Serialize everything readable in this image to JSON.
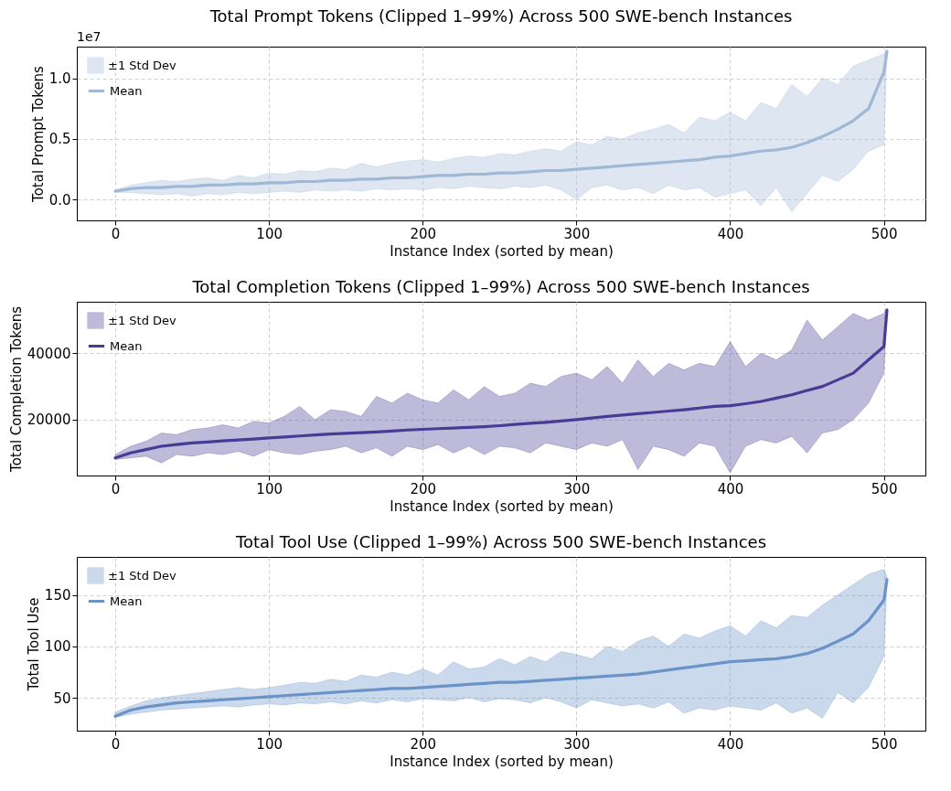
{
  "chart_data": [
    {
      "type": "line",
      "title": "Total Prompt Tokens (Clipped 1–99%) Across 500 SWE-bench Instances",
      "xlabel": "Instance Index (sorted by mean)",
      "ylabel": "Total Prompt Tokens",
      "annotations": [
        "1e7",
        "±1 Std Dev"
      ],
      "x": [
        0,
        10,
        20,
        30,
        40,
        50,
        60,
        70,
        80,
        90,
        100,
        110,
        120,
        130,
        140,
        150,
        160,
        170,
        180,
        190,
        200,
        210,
        220,
        230,
        240,
        250,
        260,
        270,
        280,
        290,
        300,
        310,
        320,
        330,
        340,
        350,
        360,
        370,
        380,
        390,
        400,
        410,
        420,
        430,
        440,
        450,
        460,
        470,
        480,
        490,
        500,
        502
      ],
      "xlim": [
        -25,
        527
      ],
      "xticks": [
        0,
        100,
        200,
        300,
        400,
        500
      ],
      "ylim": [
        -0.17,
        1.26
      ],
      "yticks": [
        {
          "value": 0,
          "label": "0.0"
        },
        {
          "value": 0.5,
          "label": "0.5"
        },
        {
          "value": 1,
          "label": "1.0"
        }
      ],
      "grid": true,
      "legend": "top left",
      "series": [
        {
          "name": "Mean",
          "color": "#9fb8d6",
          "values": [
            0.07,
            0.09,
            0.1,
            0.1,
            0.11,
            0.11,
            0.12,
            0.12,
            0.13,
            0.13,
            0.14,
            0.14,
            0.15,
            0.15,
            0.16,
            0.16,
            0.17,
            0.17,
            0.18,
            0.18,
            0.19,
            0.2,
            0.2,
            0.21,
            0.21,
            0.22,
            0.22,
            0.23,
            0.24,
            0.24,
            0.25,
            0.26,
            0.27,
            0.28,
            0.29,
            0.3,
            0.31,
            0.32,
            0.33,
            0.35,
            0.36,
            0.38,
            0.4,
            0.41,
            0.43,
            0.47,
            0.52,
            0.58,
            0.65,
            0.75,
            1.05,
            1.22
          ],
          "lower": [
            0.06,
            0.06,
            0.05,
            0.04,
            0.05,
            0.03,
            0.05,
            0.04,
            0.06,
            0.05,
            0.06,
            0.07,
            0.06,
            0.08,
            0.07,
            0.08,
            0.07,
            0.09,
            0.08,
            0.09,
            0.08,
            0.1,
            0.09,
            0.11,
            0.1,
            0.09,
            0.11,
            0.1,
            0.12,
            0.08,
            0.0,
            0.1,
            0.12,
            0.08,
            0.1,
            0.05,
            0.12,
            0.08,
            0.1,
            0.02,
            0.05,
            0.08,
            -0.05,
            0.1,
            -0.1,
            0.05,
            0.2,
            0.15,
            0.25,
            0.4,
            0.45,
            1.2
          ],
          "upper": [
            0.08,
            0.12,
            0.14,
            0.16,
            0.15,
            0.17,
            0.18,
            0.16,
            0.2,
            0.18,
            0.22,
            0.21,
            0.24,
            0.23,
            0.26,
            0.25,
            0.3,
            0.27,
            0.3,
            0.32,
            0.33,
            0.31,
            0.34,
            0.36,
            0.35,
            0.38,
            0.37,
            0.4,
            0.42,
            0.4,
            0.48,
            0.45,
            0.52,
            0.5,
            0.55,
            0.58,
            0.62,
            0.55,
            0.68,
            0.65,
            0.72,
            0.65,
            0.8,
            0.75,
            0.95,
            0.85,
            1.0,
            0.95,
            1.1,
            1.15,
            1.2,
            1.24
          ]
        }
      ]
    },
    {
      "type": "line",
      "title": "Total Completion Tokens (Clipped 1–99%) Across 500 SWE-bench Instances",
      "xlabel": "Instance Index (sorted by mean)",
      "ylabel": "Total Completion Tokens",
      "annotations": [
        "±1 Std Dev"
      ],
      "x": [
        0,
        10,
        20,
        30,
        40,
        50,
        60,
        70,
        80,
        90,
        100,
        110,
        120,
        130,
        140,
        150,
        160,
        170,
        180,
        190,
        200,
        210,
        220,
        230,
        240,
        250,
        260,
        270,
        280,
        290,
        300,
        310,
        320,
        330,
        340,
        350,
        360,
        370,
        380,
        390,
        400,
        410,
        420,
        430,
        440,
        450,
        460,
        470,
        480,
        490,
        500,
        502
      ],
      "xlim": [
        -25,
        527
      ],
      "xticks": [
        0,
        100,
        200,
        300,
        400,
        500
      ],
      "ylim": [
        3200,
        55500
      ],
      "yticks": [
        20000,
        40000
      ],
      "grid": true,
      "legend": "top left",
      "series": [
        {
          "name": "Mean",
          "color": "#463c96",
          "values": [
            8500,
            10000,
            11000,
            12000,
            12500,
            13000,
            13300,
            13600,
            13900,
            14200,
            14500,
            14800,
            15100,
            15400,
            15700,
            15900,
            16100,
            16300,
            16600,
            16900,
            17100,
            17300,
            17500,
            17700,
            17900,
            18200,
            18600,
            18900,
            19200,
            19600,
            20000,
            20500,
            21000,
            21400,
            21800,
            22200,
            22600,
            23000,
            23500,
            24000,
            24200,
            24800,
            25500,
            26500,
            27500,
            28800,
            30000,
            32000,
            34000,
            38000,
            42000,
            53000
          ],
          "lower": [
            8000,
            8500,
            9000,
            7000,
            9500,
            9000,
            10000,
            9500,
            10500,
            9000,
            11000,
            10000,
            9500,
            10500,
            11000,
            12000,
            10000,
            11500,
            9000,
            12000,
            11000,
            12500,
            10000,
            12000,
            9500,
            12000,
            11500,
            10000,
            13000,
            12000,
            11000,
            13000,
            12000,
            14000,
            5000,
            12000,
            11000,
            9000,
            13000,
            12000,
            4000,
            12000,
            14000,
            13000,
            15000,
            10000,
            16000,
            17000,
            20000,
            25000,
            34000,
            52500
          ],
          "upper": [
            9500,
            12000,
            13500,
            16000,
            15500,
            17000,
            17500,
            18500,
            17500,
            19500,
            19000,
            21000,
            24000,
            20000,
            23000,
            22500,
            21000,
            27000,
            25000,
            28000,
            26000,
            25000,
            29000,
            26000,
            30000,
            27000,
            28000,
            31000,
            30000,
            33000,
            34000,
            32000,
            36000,
            31000,
            38000,
            33000,
            37000,
            35000,
            37000,
            36000,
            43500,
            36000,
            40000,
            38000,
            41000,
            50000,
            44000,
            48000,
            52000,
            50000,
            52000,
            53500
          ]
        }
      ]
    },
    {
      "type": "line",
      "title": "Total Tool Use (Clipped 1–99%) Across 500 SWE-bench Instances",
      "xlabel": "Instance Index (sorted by mean)",
      "ylabel": "Total Tool Use",
      "annotations": [
        "±1 Std Dev"
      ],
      "x": [
        0,
        10,
        20,
        30,
        40,
        50,
        60,
        70,
        80,
        90,
        100,
        110,
        120,
        130,
        140,
        150,
        160,
        170,
        180,
        190,
        200,
        210,
        220,
        230,
        240,
        250,
        260,
        270,
        280,
        290,
        300,
        310,
        320,
        330,
        340,
        350,
        360,
        370,
        380,
        390,
        400,
        410,
        420,
        430,
        440,
        450,
        460,
        470,
        480,
        490,
        500,
        502
      ],
      "xlim": [
        -25,
        527
      ],
      "xticks": [
        0,
        100,
        200,
        300,
        400,
        500
      ],
      "ylim": [
        18,
        187
      ],
      "yticks": [
        50,
        100,
        150
      ],
      "grid": true,
      "legend": "top left",
      "series": [
        {
          "name": "Mean",
          "color": "#6a93c8",
          "values": [
            32,
            38,
            41,
            43,
            45,
            46,
            47,
            48,
            49,
            50,
            51,
            52,
            53,
            54,
            55,
            56,
            57,
            58,
            59,
            59,
            60,
            61,
            62,
            63,
            64,
            65,
            65,
            66,
            67,
            68,
            69,
            70,
            71,
            72,
            73,
            75,
            77,
            79,
            81,
            83,
            85,
            86,
            87,
            88,
            90,
            93,
            98,
            105,
            112,
            125,
            145,
            165
          ],
          "lower": [
            31,
            34,
            36,
            38,
            39,
            40,
            41,
            42,
            41,
            43,
            44,
            43,
            45,
            44,
            46,
            44,
            47,
            45,
            48,
            46,
            49,
            48,
            47,
            50,
            46,
            49,
            48,
            45,
            50,
            46,
            40,
            48,
            45,
            42,
            44,
            40,
            46,
            35,
            40,
            38,
            42,
            40,
            38,
            45,
            35,
            40,
            30,
            55,
            45,
            60,
            90,
            160
          ],
          "upper": [
            36,
            42,
            47,
            50,
            52,
            54,
            56,
            58,
            60,
            58,
            60,
            62,
            65,
            64,
            68,
            66,
            72,
            70,
            75,
            72,
            78,
            72,
            85,
            78,
            80,
            88,
            82,
            90,
            85,
            95,
            92,
            88,
            100,
            95,
            105,
            110,
            100,
            112,
            108,
            115,
            120,
            110,
            125,
            118,
            130,
            128,
            140,
            150,
            160,
            170,
            175,
            168
          ]
        }
      ]
    }
  ]
}
